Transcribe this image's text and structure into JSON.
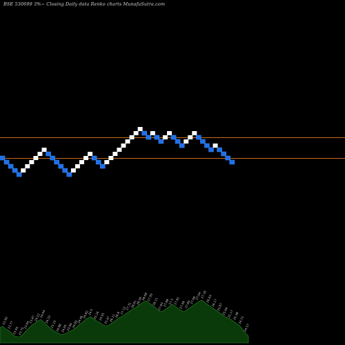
{
  "caption": {
    "symbol": "BSE 530699 3%~",
    "subtitle": "Closing Daily data Renko charts MunafaSutra.com"
  },
  "colors": {
    "background": "#000000",
    "up_brick": "#ffffff",
    "down_brick": "#1f6fe8",
    "down_brick_edge": "#3f8dff",
    "reference_line": "#c86a1e",
    "volume_fill": "#0a3a0a",
    "volume_edge": "#2e8a2e"
  },
  "chart_data": {
    "type": "renko",
    "title": "BSE 530699 3%~ Closing Daily data Renko charts MunafaSutra.com",
    "reference_lines": [
      27.8,
      25.3
    ],
    "bricks": [
      {
        "dir": "down",
        "value": 25.3
      },
      {
        "dir": "down",
        "value": 24.8
      },
      {
        "dir": "down",
        "value": 24.3
      },
      {
        "dir": "down",
        "value": 23.8
      },
      {
        "dir": "down",
        "value": 23.3
      },
      {
        "dir": "up",
        "value": 23.8
      },
      {
        "dir": "up",
        "value": 24.3
      },
      {
        "dir": "up",
        "value": 24.8
      },
      {
        "dir": "up",
        "value": 25.3
      },
      {
        "dir": "up",
        "value": 25.8
      },
      {
        "dir": "up",
        "value": 26.3
      },
      {
        "dir": "down",
        "value": 25.8
      },
      {
        "dir": "down",
        "value": 25.3
      },
      {
        "dir": "down",
        "value": 24.8
      },
      {
        "dir": "down",
        "value": 24.3
      },
      {
        "dir": "down",
        "value": 23.8
      },
      {
        "dir": "down",
        "value": 23.3
      },
      {
        "dir": "up",
        "value": 23.8
      },
      {
        "dir": "up",
        "value": 24.3
      },
      {
        "dir": "up",
        "value": 24.8
      },
      {
        "dir": "up",
        "value": 25.3
      },
      {
        "dir": "up",
        "value": 25.8
      },
      {
        "dir": "down",
        "value": 25.3
      },
      {
        "dir": "down",
        "value": 24.8
      },
      {
        "dir": "down",
        "value": 24.3
      },
      {
        "dir": "up",
        "value": 24.8
      },
      {
        "dir": "up",
        "value": 25.3
      },
      {
        "dir": "up",
        "value": 25.8
      },
      {
        "dir": "up",
        "value": 26.3
      },
      {
        "dir": "up",
        "value": 26.8
      },
      {
        "dir": "up",
        "value": 27.3
      },
      {
        "dir": "up",
        "value": 27.8
      },
      {
        "dir": "up",
        "value": 28.3
      },
      {
        "dir": "up",
        "value": 28.8
      },
      {
        "dir": "down",
        "value": 28.3
      },
      {
        "dir": "down",
        "value": 27.8
      },
      {
        "dir": "up",
        "value": 28.3
      },
      {
        "dir": "down",
        "value": 27.8
      },
      {
        "dir": "down",
        "value": 27.3
      },
      {
        "dir": "up",
        "value": 27.8
      },
      {
        "dir": "up",
        "value": 28.3
      },
      {
        "dir": "down",
        "value": 27.8
      },
      {
        "dir": "down",
        "value": 27.3
      },
      {
        "dir": "down",
        "value": 26.8
      },
      {
        "dir": "up",
        "value": 27.3
      },
      {
        "dir": "up",
        "value": 27.8
      },
      {
        "dir": "up",
        "value": 28.3
      },
      {
        "dir": "down",
        "value": 27.8
      },
      {
        "dir": "down",
        "value": 27.3
      },
      {
        "dir": "down",
        "value": 26.8
      },
      {
        "dir": "down",
        "value": 26.3
      },
      {
        "dir": "up",
        "value": 26.8
      },
      {
        "dir": "down",
        "value": 26.3
      },
      {
        "dir": "down",
        "value": 25.8
      },
      {
        "dir": "down",
        "value": 25.3
      },
      {
        "dir": "down",
        "value": 24.8
      }
    ],
    "volume_labels": [
      "23.99",
      "23.77",
      "23.95",
      "23.75",
      "23.64",
      "23.47",
      "24.22",
      "24.04",
      "24.33",
      "25.19",
      "24.88",
      "24.05",
      "23.96",
      "24.69",
      "24.46",
      "24.82",
      "24.5",
      "25.16",
      "24.95",
      "25.47",
      "26.11",
      "26.8",
      "27.12",
      "27.31",
      "28.01",
      "28.39",
      "28.68",
      "27.99",
      "28.11",
      "27.83",
      "27.88",
      "27.3",
      "27.81",
      "27.48",
      "27.85",
      "27.66",
      "27.64",
      "27.18",
      "26.63",
      "26.17",
      "25.87",
      "25.64",
      "25.17",
      "25.38",
      "24.72",
      "24.57"
    ],
    "volume": [
      22,
      24,
      20,
      18,
      14,
      10,
      9,
      9,
      13,
      18,
      22,
      26,
      29,
      32,
      34,
      30,
      26,
      22,
      19,
      16,
      14,
      12,
      13,
      15,
      17,
      19,
      22,
      26,
      29,
      33,
      36,
      38,
      35,
      32,
      30,
      27,
      25,
      25,
      28,
      31,
      34,
      37,
      39,
      42,
      45,
      48,
      50,
      53,
      56,
      59,
      61,
      58,
      55,
      52,
      48,
      45,
      47,
      50,
      53,
      56,
      53,
      50,
      47,
      45,
      48,
      51,
      54,
      57,
      60,
      62,
      59,
      56,
      53,
      50,
      47,
      44,
      41,
      38,
      36,
      34,
      31,
      28,
      25,
      20,
      14,
      10
    ]
  }
}
